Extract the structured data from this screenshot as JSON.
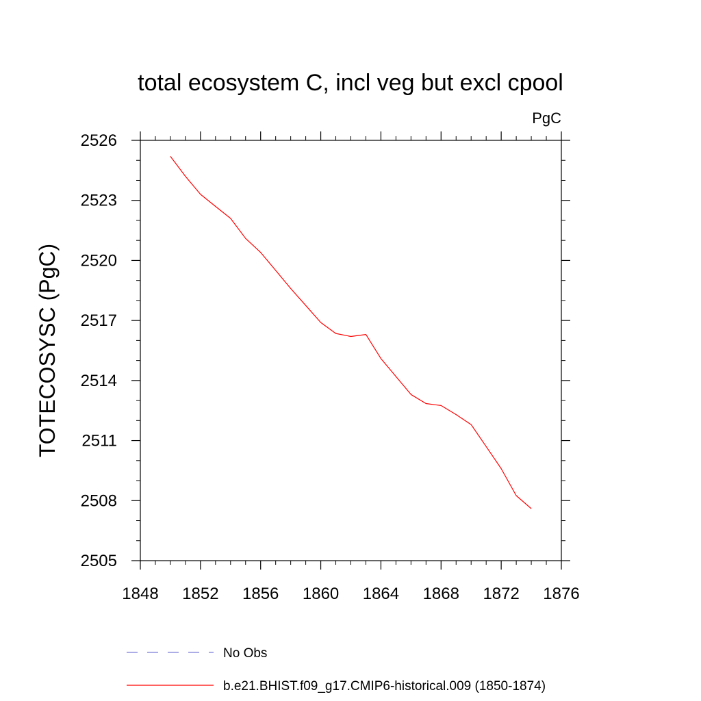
{
  "chart_data": {
    "type": "line",
    "title": "total ecosystem C, incl veg but excl cpool",
    "units": "PgC",
    "ylabel": "TOTECOSYSC  (PgC)",
    "xlabel": "",
    "xlim": [
      1848,
      1876
    ],
    "ylim": [
      2505,
      2526
    ],
    "xticks": [
      1848,
      1852,
      1856,
      1860,
      1864,
      1868,
      1872,
      1876
    ],
    "yticks": [
      2505,
      2508,
      2511,
      2514,
      2517,
      2520,
      2523,
      2526
    ],
    "grid": false,
    "legend_position": "bottom",
    "series": [
      {
        "name": "b.e21.BHIST.f09_g17.CMIP6-historical.009 (1850-1874)",
        "color": "#ff0000",
        "style": "solid",
        "x": [
          1850,
          1851,
          1852,
          1853,
          1854,
          1855,
          1856,
          1857,
          1858,
          1859,
          1860,
          1861,
          1862,
          1863,
          1864,
          1865,
          1866,
          1867,
          1868,
          1869,
          1870,
          1871,
          1872,
          1873,
          1874
        ],
        "y": [
          2525.2,
          2524.2,
          2523.3,
          2522.7,
          2522.1,
          2521.1,
          2520.4,
          2519.5,
          2518.6,
          2517.75,
          2516.9,
          2516.35,
          2516.2,
          2516.3,
          2515.1,
          2514.2,
          2513.3,
          2512.85,
          2512.75,
          2512.3,
          2511.8,
          2510.7,
          2509.6,
          2508.25,
          2507.6
        ]
      }
    ],
    "legend": [
      {
        "label": "No Obs",
        "color": "#7b7bd6",
        "style": "dashed"
      },
      {
        "label": "b.e21.BHIST.f09_g17.CMIP6-historical.009 (1850-1874)",
        "color": "#ff0000",
        "style": "solid"
      }
    ]
  }
}
